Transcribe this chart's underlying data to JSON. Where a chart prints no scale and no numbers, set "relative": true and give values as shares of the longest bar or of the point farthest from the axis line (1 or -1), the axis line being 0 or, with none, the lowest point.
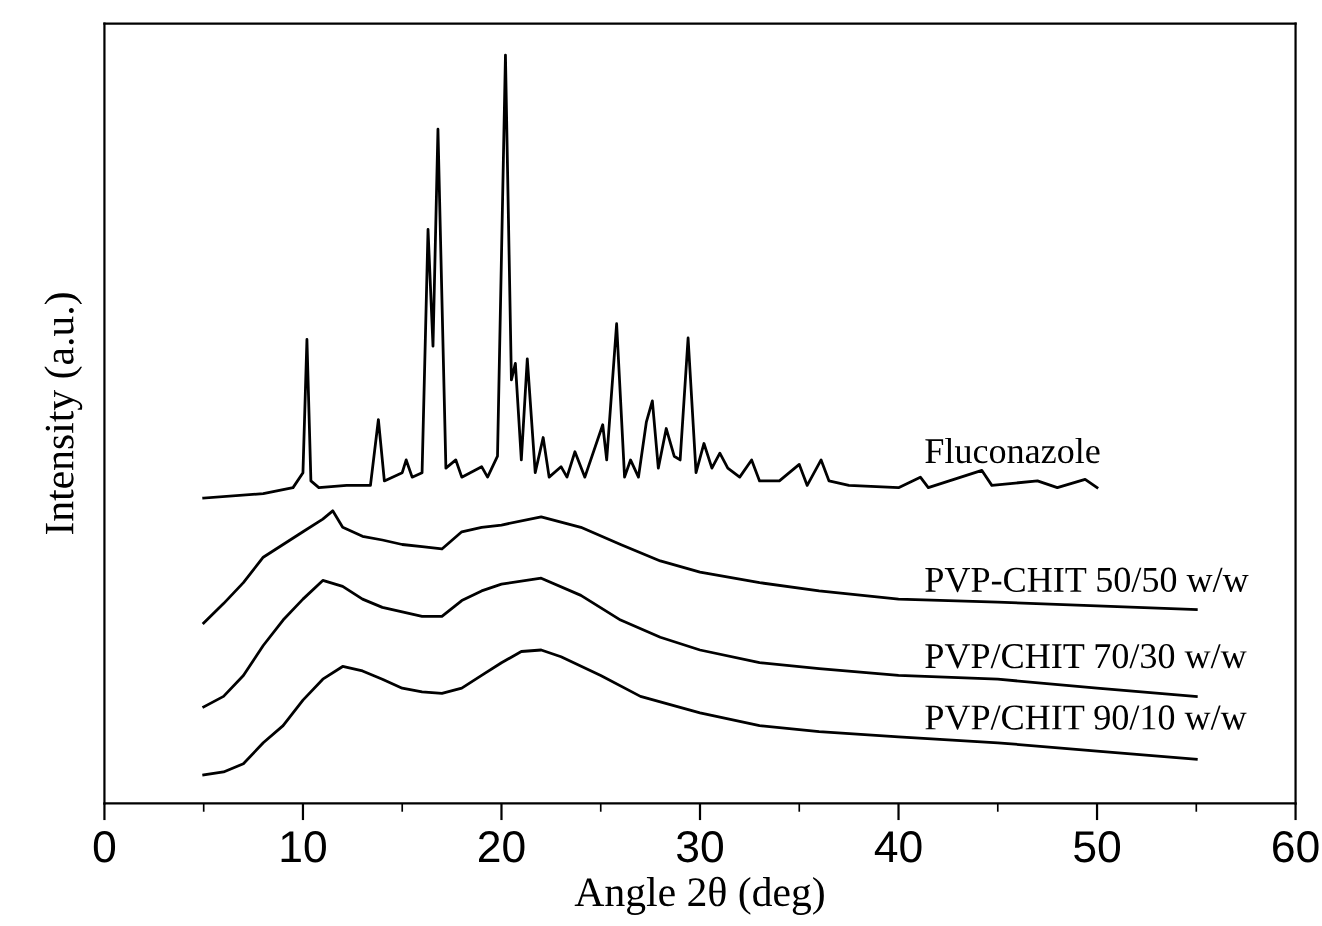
{
  "chart_data": {
    "type": "line",
    "relative": true,
    "xlabel": "Angle 2θ (deg)",
    "ylabel": "Intensity (a.u.)",
    "xlim": [
      0,
      60
    ],
    "xticks": [
      0,
      {
        "value": 5,
        "label": null
      },
      10,
      {
        "value": 15,
        "label": null
      },
      20,
      {
        "value": 25,
        "label": null
      },
      30,
      {
        "value": 35,
        "label": null
      },
      40,
      {
        "value": 45,
        "label": null
      },
      50,
      {
        "value": 55,
        "label": null
      },
      60
    ],
    "grid": false,
    "legend": false,
    "marker": "none",
    "line_style": "solid",
    "series": [
      {
        "name": "Fluconazole",
        "color": "#000000",
        "x": [
          5,
          8,
          9.5,
          10.0,
          10.2,
          10.4,
          10.8,
          12.2,
          13.4,
          13.8,
          14.1,
          15.0,
          15.2,
          15.5,
          16.0,
          16.3,
          16.55,
          16.8,
          17.2,
          17.7,
          18.0,
          19.0,
          19.3,
          19.8,
          20.2,
          20.5,
          20.7,
          21.0,
          21.3,
          21.7,
          22.1,
          22.4,
          23.0,
          23.3,
          23.7,
          24.2,
          25.1,
          25.3,
          25.8,
          26.2,
          26.5,
          26.9,
          27.3,
          27.6,
          27.9,
          28.3,
          28.7,
          29.0,
          29.4,
          29.8,
          30.2,
          30.6,
          31.0,
          31.4,
          32.0,
          32.6,
          33.0,
          34.0,
          35.0,
          35.4,
          36.1,
          36.5,
          37.5,
          40,
          41.1,
          41.5,
          44.2,
          44.7,
          47,
          48,
          49.4,
          50
        ],
        "values": [
          0.408,
          0.414,
          0.422,
          0.442,
          0.62,
          0.431,
          0.422,
          0.425,
          0.425,
          0.513,
          0.431,
          0.442,
          0.459,
          0.436,
          0.442,
          0.767,
          0.611,
          0.901,
          0.448,
          0.459,
          0.436,
          0.45,
          0.436,
          0.464,
          1.0,
          0.566,
          0.588,
          0.459,
          0.594,
          0.442,
          0.489,
          0.436,
          0.45,
          0.436,
          0.47,
          0.436,
          0.506,
          0.459,
          0.641,
          0.436,
          0.459,
          0.436,
          0.51,
          0.538,
          0.448,
          0.501,
          0.464,
          0.459,
          0.622,
          0.442,
          0.481,
          0.448,
          0.468,
          0.448,
          0.436,
          0.459,
          0.431,
          0.431,
          0.453,
          0.425,
          0.459,
          0.431,
          0.425,
          0.422,
          0.436,
          0.422,
          0.445,
          0.425,
          0.431,
          0.422,
          0.433,
          0.422
        ]
      },
      {
        "name": "PVP-CHIT 50/50 w/w",
        "color": "#000000",
        "x": [
          5,
          6,
          7,
          8,
          9,
          10,
          11,
          11.5,
          12,
          13,
          14,
          15,
          16,
          17,
          18,
          19,
          20,
          22,
          24,
          26,
          28,
          30,
          33,
          36,
          40,
          45,
          50,
          55
        ],
        "values": [
          0.241,
          0.267,
          0.295,
          0.329,
          0.346,
          0.363,
          0.38,
          0.391,
          0.369,
          0.357,
          0.352,
          0.346,
          0.343,
          0.34,
          0.363,
          0.369,
          0.372,
          0.383,
          0.369,
          0.346,
          0.324,
          0.309,
          0.295,
          0.284,
          0.273,
          0.269,
          0.264,
          0.259
        ]
      },
      {
        "name": "PVP/CHIT 70/30 w/w",
        "color": "#000000",
        "x": [
          5,
          6,
          7,
          8,
          9,
          10,
          11,
          12,
          13,
          14,
          15,
          16,
          17,
          18,
          19,
          20,
          22,
          24,
          26,
          28,
          30,
          33,
          36,
          40,
          45,
          50,
          55
        ],
        "values": [
          0.129,
          0.143,
          0.171,
          0.211,
          0.245,
          0.273,
          0.298,
          0.29,
          0.273,
          0.262,
          0.256,
          0.25,
          0.25,
          0.271,
          0.284,
          0.293,
          0.301,
          0.278,
          0.245,
          0.222,
          0.205,
          0.188,
          0.18,
          0.171,
          0.166,
          0.154,
          0.143
        ]
      },
      {
        "name": "PVP/CHIT 90/10 w/w",
        "color": "#000000",
        "x": [
          5,
          6,
          7,
          8,
          9,
          10,
          11,
          12,
          13,
          14,
          15,
          16,
          17,
          18,
          19,
          20,
          21,
          22,
          23,
          25,
          27,
          30,
          33,
          36,
          40,
          45,
          50,
          55
        ],
        "values": [
          0.038,
          0.042,
          0.053,
          0.081,
          0.104,
          0.138,
          0.166,
          0.183,
          0.177,
          0.166,
          0.154,
          0.149,
          0.147,
          0.154,
          0.171,
          0.188,
          0.203,
          0.205,
          0.196,
          0.171,
          0.143,
          0.121,
          0.104,
          0.096,
          0.089,
          0.081,
          0.07,
          0.059
        ]
      }
    ]
  }
}
